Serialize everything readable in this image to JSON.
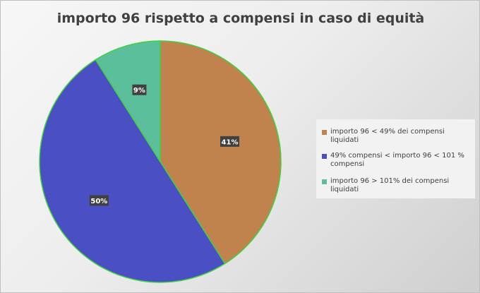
{
  "chart_data": {
    "type": "pie",
    "title": "importo 96 rispetto a compensi in caso di equità",
    "categories": [
      "importo 96 < 49% dei compensi liquidati",
      "49% compensi < importo 96 < 101 % compensi",
      "importo 96 > 101% dei compensi liquidati"
    ],
    "values": [
      41,
      50,
      9
    ],
    "data_labels": [
      "41%",
      "50%",
      "9%"
    ],
    "colors": [
      "#c0834e",
      "#4b4fc4",
      "#5bbf9b"
    ],
    "border_color": "#3fd13f",
    "legend_position": "right",
    "start_angle_deg": 0,
    "direction": "clockwise"
  }
}
